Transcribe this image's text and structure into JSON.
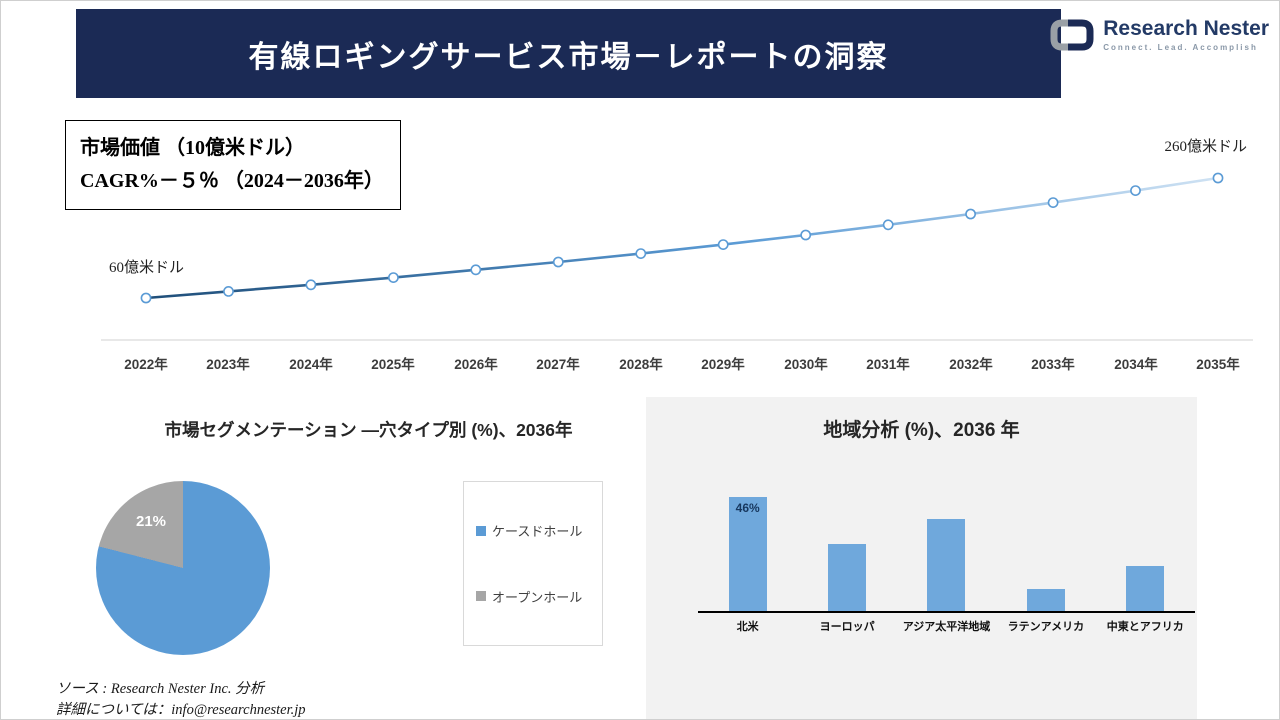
{
  "theme": {
    "navy": "#1b2a55",
    "chart_blue": "#5b9bd5",
    "bar_blue": "#6fa8dc",
    "gray": "#a6a6a6",
    "panel_gray": "#f2f2f2"
  },
  "header": {
    "title": "有線ロギングサービス市場－レポートの洞察"
  },
  "logo": {
    "name": "Research Nester",
    "tagline": "Connect. Lead. Accomplish"
  },
  "info_box": {
    "line1": "市場価値 （10億米ドル）",
    "line2": "CAGR%－５％ （2024－2036年）"
  },
  "footer": {
    "source": "ソース : Research Nester Inc. 分析",
    "contact": "詳細については：info@researchnester.jp"
  },
  "chart_data": [
    {
      "id": "market-value-line",
      "type": "line",
      "title": "市場価値 （10億米ドル）",
      "x": [
        "2022年",
        "2023年",
        "2024年",
        "2025年",
        "2026年",
        "2027年",
        "2028年",
        "2029年",
        "2030年",
        "2031年",
        "2032年",
        "2033年",
        "2034年",
        "2035年"
      ],
      "values": [
        60,
        71,
        82,
        94,
        107,
        120,
        134,
        149,
        165,
        182,
        200,
        219,
        239,
        260
      ],
      "ylim": [
        60,
        260
      ],
      "start_label": "60億米ドル",
      "end_label": "260億米ドル",
      "line_color_start": "#1f4e79",
      "line_color_mid": "#5b9bd5",
      "line_color_end": "#cfe2f3",
      "marker": "open-circle",
      "grid": false,
      "legend_position": "none"
    },
    {
      "id": "segmentation-pie",
      "type": "pie",
      "title": "市場セグメンテーション ―穴タイプ別 (%)、2036年",
      "labels": [
        "ケースドホール",
        "オープンホール"
      ],
      "values": [
        79,
        21
      ],
      "colors": [
        "#5b9bd5",
        "#a6a6a6"
      ],
      "shown_label": "21%",
      "legend_position": "right"
    },
    {
      "id": "regional-bar",
      "type": "bar",
      "title": "地域分析 (%)、2036 年",
      "categories": [
        "北米",
        "ヨーロッパ",
        "アジア太平洋地域",
        "ラテンアメリカ",
        "中東とアフリカ"
      ],
      "values": [
        46,
        27,
        37,
        9,
        18
      ],
      "ylim": [
        0,
        50
      ],
      "bar_color": "#6fa8dc",
      "first_bar_label": "46%",
      "grid": false,
      "legend_position": "none"
    }
  ]
}
